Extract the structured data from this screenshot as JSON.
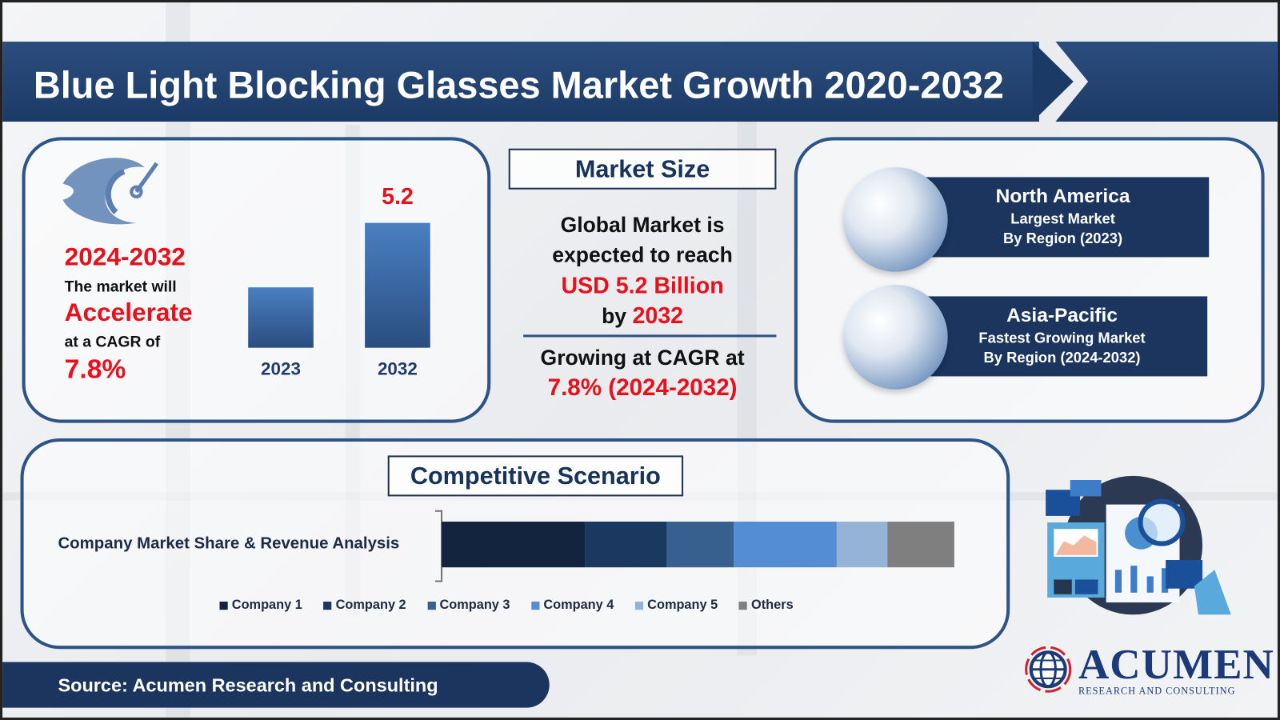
{
  "title": "Blue Light Blocking Glasses Market Growth 2020-2032",
  "left_panel": {
    "period": "2024-2032",
    "line1": "The market will",
    "highlight": "Accelerate",
    "line2": "at a CAGR of",
    "cagr": "7.8%"
  },
  "market_size": {
    "heading": "Market Size",
    "line1": "Global Market is",
    "line2": "expected to reach",
    "value": "USD 5.2 Billion",
    "by_prefix": "by",
    "by_year": "2032",
    "growing": "Growing at CAGR at",
    "cagr": "7.8% (2024-2032)"
  },
  "regions": [
    {
      "name": "North America",
      "line1": "Largest Market",
      "line2": "By Region (2023)"
    },
    {
      "name": "Asia-Pacific",
      "line1": "Fastest Growing Market",
      "line2": "By Region (2024-2032)"
    }
  ],
  "competitive": {
    "heading": "Competitive Scenario",
    "row_label": "Company Market Share & Revenue Analysis"
  },
  "source": "Source: Acumen Research and Consulting",
  "logo": {
    "name": "ACUMEN",
    "tagline": "RESEARCH AND CONSULTING"
  },
  "chart_data": [
    {
      "type": "bar",
      "categories": [
        "2023",
        "2032"
      ],
      "values": [
        2.5,
        5.2
      ],
      "data_labels": [
        null,
        "5.2"
      ],
      "unit": "USD Billion",
      "colors": [
        "#3c6fb0"
      ]
    },
    {
      "type": "bar",
      "orientation": "horizontal-stacked",
      "categories": [
        "Company Market Share & Revenue Analysis"
      ],
      "series": [
        {
          "name": "Company 1",
          "values": [
            28
          ],
          "color": "#13243f"
        },
        {
          "name": "Company 2",
          "values": [
            16
          ],
          "color": "#1a3860"
        },
        {
          "name": "Company 3",
          "values": [
            13
          ],
          "color": "#37608f"
        },
        {
          "name": "Company 4",
          "values": [
            20
          ],
          "color": "#548dd4"
        },
        {
          "name": "Company 5",
          "values": [
            10
          ],
          "color": "#95b3d7"
        },
        {
          "name": "Others",
          "values": [
            13
          ],
          "color": "#7f7f7f"
        }
      ],
      "unit": "%",
      "legend": "bottom"
    }
  ]
}
